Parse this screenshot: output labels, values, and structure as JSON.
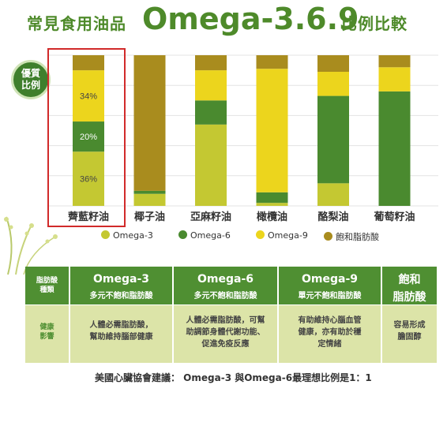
{
  "title": {
    "prefix": "常見食用油品",
    "main": "Omega-3.6.9",
    "suffix": "比例比較"
  },
  "badge": {
    "line1": "優質",
    "line2": "比例"
  },
  "colors": {
    "omega3": "#c4c832",
    "omega6": "#4a8a2f",
    "omega9": "#ecd51d",
    "saturated": "#a98c1e",
    "accent": "#4e8a2a",
    "highlight": "#d12a2a"
  },
  "chart_data": {
    "type": "bar",
    "stacked": true,
    "categories": [
      "薺藍籽油",
      "椰子油",
      "亞麻籽油",
      "橄欖油",
      "酪梨油",
      "葡萄籽油"
    ],
    "series": [
      {
        "name": "Omega-3",
        "color": "#c4c832",
        "values": [
          36,
          8,
          54,
          2,
          15,
          0
        ]
      },
      {
        "name": "Omega-6",
        "color": "#4a8a2f",
        "values": [
          20,
          2,
          16,
          7,
          58,
          76
        ]
      },
      {
        "name": "Omega-9",
        "color": "#ecd51d",
        "values": [
          34,
          0,
          20,
          82,
          16,
          16
        ]
      },
      {
        "name": "飽和脂肪酸",
        "color": "#a98c1e",
        "values": [
          10,
          90,
          10,
          9,
          11,
          8
        ]
      }
    ],
    "data_labels": [
      {
        "category": "薺藍籽油",
        "labels": [
          "36%",
          "20%",
          "34%",
          ""
        ]
      }
    ],
    "ylim": [
      0,
      100
    ],
    "grid": true,
    "legend": "bottom"
  },
  "table": {
    "header": [
      {
        "line1": "脂肪酸",
        "line2": "種類"
      },
      {
        "title": "Omega-3",
        "sub": "多元不飽和脂肪酸"
      },
      {
        "title": "Omega-6",
        "sub": "多元不飽和脂肪酸"
      },
      {
        "title": "Omega-9",
        "sub": "單元不飽和脂肪酸"
      },
      {
        "title": "飽和",
        "title2": "脂肪酸"
      }
    ],
    "row": [
      {
        "line1": "健康",
        "line2": "影響"
      },
      {
        "line1": "人體必需脂肪酸，",
        "line2": "幫助維持腦部健康"
      },
      {
        "line1": "人體必需脂肪酸，可幫",
        "line2": "助調節身體代謝功能、",
        "line3": "促進免疫反應"
      },
      {
        "line1": "有助維持心腦血管",
        "line2": "健康，亦有助於穩",
        "line3": "定情緒"
      },
      {
        "line1": "容易形成",
        "line2": "膽固醇"
      }
    ]
  },
  "footer": "美國心臟協會建議： Omega-3 與Omega-6最理想比例是1：1"
}
